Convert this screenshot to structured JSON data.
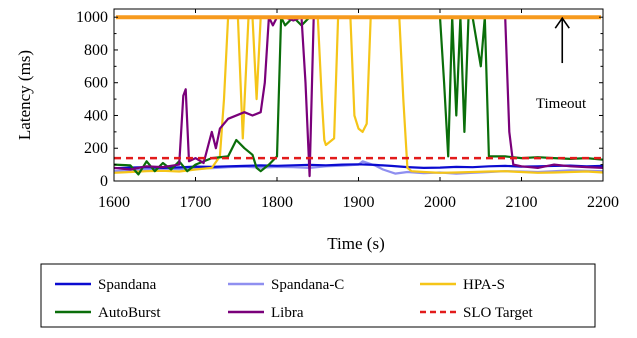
{
  "chart_data": {
    "type": "line",
    "title": "",
    "xlabel": "Time (s)",
    "ylabel": "Latency (ms)",
    "xlim": [
      1600,
      2200
    ],
    "ylim": [
      0,
      1050
    ],
    "xticks": [
      1600,
      1700,
      1800,
      1900,
      2000,
      2100,
      2200
    ],
    "yticks": [
      0,
      200,
      400,
      600,
      800,
      1000
    ],
    "yticks_minor": [
      100,
      300,
      500,
      700,
      900
    ],
    "grid": false,
    "legend_position": "below",
    "annotations": [
      {
        "text": "Timeout",
        "arrow_x": 2150,
        "arrow_from_y": 720,
        "arrow_to_y": 1000
      }
    ],
    "slo_target": 140,
    "timeout_level": 1000,
    "series": [
      {
        "name": "Spandana",
        "color": "#0b0bd0",
        "dash": "",
        "x": [
          1600,
          1620,
          1640,
          1660,
          1680,
          1700,
          1720,
          1740,
          1760,
          1780,
          1800,
          1820,
          1840,
          1860,
          1880,
          1900,
          1920,
          1940,
          1960,
          1980,
          2000,
          2020,
          2040,
          2060,
          2080,
          2100,
          2120,
          2140,
          2160,
          2180,
          2200
        ],
        "y": [
          78,
          82,
          85,
          80,
          83,
          88,
          86,
          90,
          92,
          95,
          93,
          96,
          98,
          96,
          100,
          102,
          98,
          92,
          85,
          80,
          82,
          86,
          84,
          90,
          92,
          88,
          90,
          92,
          94,
          90,
          92
        ]
      },
      {
        "name": "Spandana-C",
        "color": "#8f8ff0",
        "dash": "",
        "x": [
          1600,
          1620,
          1640,
          1660,
          1680,
          1700,
          1720,
          1740,
          1760,
          1780,
          1800,
          1820,
          1840,
          1860,
          1880,
          1900,
          1905,
          1920,
          1930,
          1945,
          1960,
          1980,
          2000,
          2020,
          2040,
          2060,
          2080,
          2100,
          2120,
          2140,
          2160,
          2180,
          2200
        ],
        "y": [
          60,
          65,
          70,
          75,
          72,
          80,
          78,
          85,
          88,
          82,
          86,
          84,
          80,
          90,
          94,
          100,
          120,
          95,
          70,
          45,
          55,
          48,
          52,
          45,
          50,
          55,
          60,
          58,
          55,
          60,
          65,
          62,
          60
        ]
      },
      {
        "name": "HPA-S",
        "color": "#f5c518",
        "dash": "",
        "x": [
          1600,
          1620,
          1640,
          1660,
          1680,
          1700,
          1720,
          1730,
          1735,
          1740,
          1745,
          1752,
          1758,
          1765,
          1770,
          1775,
          1780,
          1790,
          1800,
          1850,
          1855,
          1858,
          1860,
          1870,
          1875,
          1880,
          1890,
          1895,
          1900,
          1905,
          1910,
          1915,
          1920,
          1930,
          1940,
          1950,
          1955,
          1960,
          1965,
          1980,
          2000,
          2020,
          2040,
          2060,
          2080,
          2100,
          2120,
          2140,
          2160,
          2180,
          2200
        ],
        "y": [
          50,
          55,
          60,
          62,
          58,
          70,
          80,
          150,
          500,
          1000,
          1000,
          1000,
          260,
          1000,
          1000,
          500,
          1000,
          1000,
          1000,
          1000,
          500,
          250,
          220,
          260,
          1000,
          1000,
          1000,
          400,
          320,
          300,
          350,
          1000,
          1000,
          1000,
          1000,
          1000,
          500,
          80,
          60,
          55,
          50,
          52,
          55,
          58,
          60,
          55,
          50,
          52,
          55,
          58,
          52
        ]
      },
      {
        "name": "AutoBurst",
        "color": "#0a6e0a",
        "dash": "",
        "x": [
          1600,
          1620,
          1630,
          1640,
          1650,
          1660,
          1670,
          1680,
          1690,
          1700,
          1720,
          1740,
          1750,
          1760,
          1770,
          1775,
          1780,
          1785,
          1790,
          1800,
          1805,
          1810,
          1820,
          1830,
          1840,
          1860,
          1880,
          1900,
          1920,
          1940,
          1960,
          1980,
          2000,
          2005,
          2010,
          2015,
          2020,
          2025,
          2030,
          2035,
          2040,
          2050,
          2055,
          2060,
          2080,
          2100,
          2120,
          2140,
          2160,
          2180,
          2200
        ],
        "y": [
          100,
          95,
          40,
          120,
          60,
          110,
          70,
          120,
          60,
          100,
          140,
          150,
          250,
          200,
          160,
          80,
          60,
          80,
          100,
          150,
          1000,
          950,
          1000,
          950,
          1000,
          1000,
          1000,
          1000,
          1000,
          1000,
          1000,
          1000,
          1000,
          600,
          150,
          1000,
          400,
          1000,
          300,
          1000,
          1000,
          700,
          1000,
          150,
          150,
          140,
          145,
          140,
          135,
          140,
          130
        ]
      },
      {
        "name": "Libra",
        "color": "#7a007a",
        "dash": "",
        "x": [
          1600,
          1620,
          1640,
          1660,
          1680,
          1685,
          1688,
          1692,
          1700,
          1710,
          1720,
          1725,
          1730,
          1740,
          1760,
          1770,
          1780,
          1785,
          1790,
          1795,
          1800,
          1810,
          1820,
          1830,
          1835,
          1840,
          1845,
          1850,
          1860,
          1880,
          1900,
          1920,
          1940,
          1960,
          1980,
          2000,
          2020,
          2040,
          2060,
          2070,
          2080,
          2085,
          2090,
          2100,
          2120,
          2140,
          2160,
          2180,
          2200
        ],
        "y": [
          80,
          70,
          90,
          85,
          100,
          520,
          560,
          120,
          140,
          110,
          300,
          200,
          320,
          380,
          420,
          400,
          420,
          600,
          1000,
          950,
          1000,
          1000,
          980,
          1000,
          600,
          30,
          1000,
          1000,
          1000,
          1000,
          1000,
          1000,
          1000,
          1000,
          1000,
          1000,
          1000,
          1000,
          1000,
          1000,
          1000,
          300,
          100,
          90,
          80,
          100,
          90,
          85,
          80
        ]
      },
      {
        "name": "SLO Target",
        "color": "#e21b1b",
        "dash": "7,5",
        "x": [
          1600,
          2200
        ],
        "y": [
          140,
          140
        ]
      }
    ],
    "timeout_line_color": "#f79a1d"
  },
  "legend": {
    "rows": [
      [
        "Spandana",
        "Spandana-C",
        "HPA-S"
      ],
      [
        "AutoBurst",
        "Libra",
        "SLO Target"
      ]
    ]
  },
  "labels": {
    "xlabel": "Time (s)",
    "ylabel": "Latency (ms)",
    "annotation": "Timeout",
    "xticks": [
      "1600",
      "1700",
      "1800",
      "1900",
      "2000",
      "2100",
      "2200"
    ],
    "yticks": [
      "0",
      "200",
      "400",
      "600",
      "800",
      "1000"
    ],
    "legend": [
      "Spandana",
      "Spandana-C",
      "HPA-S",
      "AutoBurst",
      "Libra",
      "SLO Target"
    ]
  }
}
